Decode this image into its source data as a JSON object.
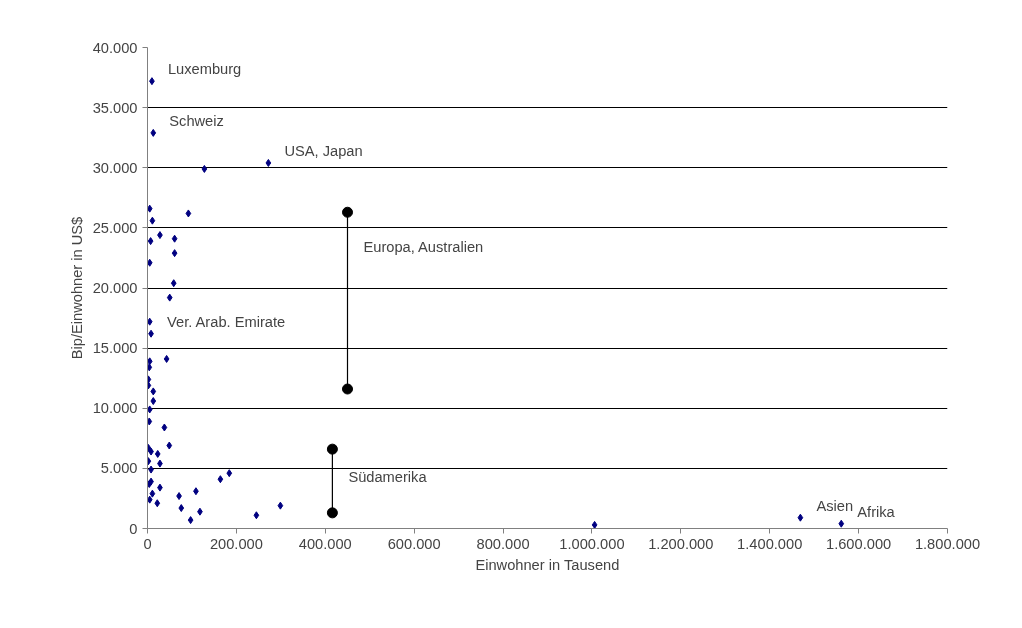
{
  "chart_data": {
    "type": "scatter",
    "xlabel": "Einwohner in Tausend",
    "ylabel": "Bip/Einwohner in US$",
    "xlim": [
      0,
      1800000
    ],
    "ylim": [
      0,
      40000
    ],
    "xticks": [
      0,
      {
        "value": 200000,
        "label": "200.000"
      },
      {
        "value": 400000,
        "label": "400.000"
      },
      {
        "value": 600000,
        "label": "600.000"
      },
      {
        "value": 800000,
        "label": "800.000"
      },
      {
        "value": 1000000,
        "label": "1.000.000"
      },
      {
        "value": 1200000,
        "label": "1.200.000"
      },
      {
        "value": 1400000,
        "label": "1.400.000"
      },
      {
        "value": 1600000,
        "label": "1.600.000"
      },
      {
        "value": 1800000,
        "label": "1.800.000"
      }
    ],
    "yticks": [
      0,
      {
        "value": 5000,
        "label": "5.000"
      },
      {
        "value": 10000,
        "label": "10.000"
      },
      {
        "value": 15000,
        "label": "15.000"
      },
      {
        "value": 20000,
        "label": "20.000"
      },
      {
        "value": 25000,
        "label": "25.000"
      },
      {
        "value": 30000,
        "label": "30.000"
      },
      {
        "value": 35000,
        "label": "35.000"
      },
      {
        "value": 40000,
        "label": "40.000"
      }
    ],
    "grid": "y",
    "series": [
      {
        "marker": "diamond",
        "color": "#000080",
        "x": [
          10000,
          13000,
          128000,
          272000,
          5000,
          11000,
          92000,
          28000,
          7000,
          61000,
          61000,
          5000,
          59000,
          50000,
          5000,
          8000,
          43000,
          5000,
          4000,
          2000,
          2000,
          13000,
          13000,
          5000,
          4000,
          38000,
          49000,
          2000,
          8000,
          23000,
          2000,
          28000,
          8000,
          4000,
          8000,
          28000,
          11000,
          5000,
          22000,
          71000,
          109000,
          164000,
          184000,
          76000,
          118000,
          97000,
          245000,
          299000,
          1006000,
          1469000,
          1561000
        ],
        "values": [
          37200,
          32900,
          29900,
          30400,
          26600,
          25600,
          26200,
          24400,
          23900,
          24100,
          22900,
          22100,
          20400,
          19200,
          17200,
          16200,
          14100,
          13900,
          13400,
          12400,
          11900,
          11400,
          10600,
          9900,
          8900,
          8400,
          6900,
          6700,
          6400,
          6200,
          5600,
          5400,
          4900,
          3700,
          3900,
          3400,
          2900,
          2400,
          2100,
          2700,
          3100,
          4100,
          4600,
          1700,
          1400,
          700,
          1100,
          1900,
          300,
          900,
          400
        ]
      },
      {
        "type": "line",
        "marker": "circle",
        "color": "#000000",
        "x": [
          450000,
          450000
        ],
        "values": [
          26300,
          11600
        ]
      },
      {
        "type": "line",
        "marker": "circle",
        "color": "#000000",
        "x": [
          416000,
          416000
        ],
        "values": [
          6600,
          1300
        ]
      }
    ],
    "annotations": [
      {
        "text": "Luxemburg",
        "x": 10000,
        "y": 37200
      },
      {
        "text": "Schweiz",
        "x": 13000,
        "y": 32900
      },
      {
        "text": "USA, Japan",
        "x": 272000,
        "y": 30400
      },
      {
        "text": "Europa, Australien",
        "x": 450000,
        "y": 22400
      },
      {
        "text": "Ver. Arab.  Emirate",
        "x": 8000,
        "y": 16200
      },
      {
        "text": "Südamerika",
        "x": 416000,
        "y": 3300
      },
      {
        "text": "Asien",
        "x": 1469000,
        "y": 900
      },
      {
        "text": "Afrika",
        "x": 1561000,
        "y": 400
      }
    ]
  }
}
